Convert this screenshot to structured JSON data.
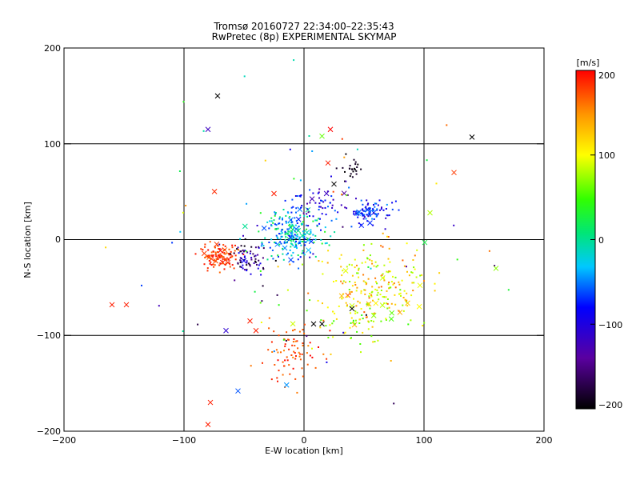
{
  "chart_data": {
    "type": "scatter",
    "title": "Tromsø 20160727 22:34:00–22:35:43",
    "subtitle": "RwPretec (8p) EXPERIMENTAL SKYMAP",
    "xlabel": "E-W location [km]",
    "ylabel": "N-S location [km]",
    "xlim": [
      -200,
      200
    ],
    "ylim": [
      -200,
      200
    ],
    "x_ticks": [
      "−200",
      "−100",
      "0",
      "100",
      "200"
    ],
    "y_ticks": [
      "−200",
      "−100",
      "0",
      "100",
      "200"
    ],
    "gridlines_x": [
      -100,
      0,
      100
    ],
    "gridlines_y": [
      -100,
      0,
      100
    ],
    "colorbar": {
      "unit": "[m/s]",
      "range": [
        -200,
        200
      ],
      "ticks": [
        "200",
        "100",
        "0",
        "−100",
        "−200"
      ]
    },
    "clusters": [
      {
        "cx": -10,
        "cy": 5,
        "sx": 12,
        "sy": 12,
        "n": 220,
        "vel": [
          -80,
          40
        ]
      },
      {
        "cx": -70,
        "cy": -18,
        "sx": 7,
        "sy": 6,
        "n": 110,
        "vel": [
          160,
          200
        ]
      },
      {
        "cx": -45,
        "cy": -20,
        "sx": 8,
        "sy": 10,
        "n": 70,
        "vel": [
          -200,
          -80
        ]
      },
      {
        "cx": 55,
        "cy": 28,
        "sx": 9,
        "sy": 6,
        "n": 80,
        "vel": [
          -120,
          -40
        ]
      },
      {
        "cx": 60,
        "cy": -50,
        "sx": 22,
        "sy": 22,
        "n": 200,
        "vel": [
          60,
          170
        ]
      },
      {
        "cx": -10,
        "cy": -115,
        "sx": 12,
        "sy": 15,
        "n": 80,
        "vel": [
          150,
          200
        ]
      },
      {
        "cx": 40,
        "cy": 72,
        "sx": 5,
        "sy": 8,
        "n": 25,
        "vel": [
          -200,
          -180
        ]
      },
      {
        "cx": 10,
        "cy": 35,
        "sx": 15,
        "sy": 10,
        "n": 60,
        "vel": [
          -150,
          -50
        ]
      },
      {
        "cx": 40,
        "cy": -90,
        "sx": 25,
        "sy": 15,
        "n": 50,
        "vel": [
          40,
          120
        ]
      },
      {
        "cx": 0,
        "cy": 0,
        "sx": 80,
        "sy": 80,
        "n": 70,
        "vel": [
          -200,
          200
        ]
      }
    ],
    "crosses": [
      {
        "x": -72,
        "y": 150,
        "v": -200
      },
      {
        "x": -80,
        "y": 115,
        "v": -120
      },
      {
        "x": 140,
        "y": 107,
        "v": -200
      },
      {
        "x": 125,
        "y": 70,
        "v": 180
      },
      {
        "x": 22,
        "y": 115,
        "v": 200
      },
      {
        "x": 15,
        "y": 108,
        "v": 60
      },
      {
        "x": 20,
        "y": 80,
        "v": 190
      },
      {
        "x": -160,
        "y": -68,
        "v": 190
      },
      {
        "x": -148,
        "y": -68,
        "v": 190
      },
      {
        "x": -80,
        "y": -193,
        "v": 190
      },
      {
        "x": -78,
        "y": -170,
        "v": 190
      },
      {
        "x": -55,
        "y": -158,
        "v": -60
      },
      {
        "x": -65,
        "y": -95,
        "v": -110
      },
      {
        "x": -45,
        "y": -85,
        "v": 190
      },
      {
        "x": -40,
        "y": -95,
        "v": 190
      },
      {
        "x": 15,
        "y": -88,
        "v": -200
      },
      {
        "x": 8,
        "y": -88,
        "v": -200
      },
      {
        "x": 40,
        "y": -72,
        "v": -200
      },
      {
        "x": 160,
        "y": -30,
        "v": 70
      },
      {
        "x": 105,
        "y": 28,
        "v": 80
      },
      {
        "x": 25,
        "y": 58,
        "v": -200
      },
      {
        "x": -25,
        "y": 48,
        "v": 190
      }
    ]
  }
}
